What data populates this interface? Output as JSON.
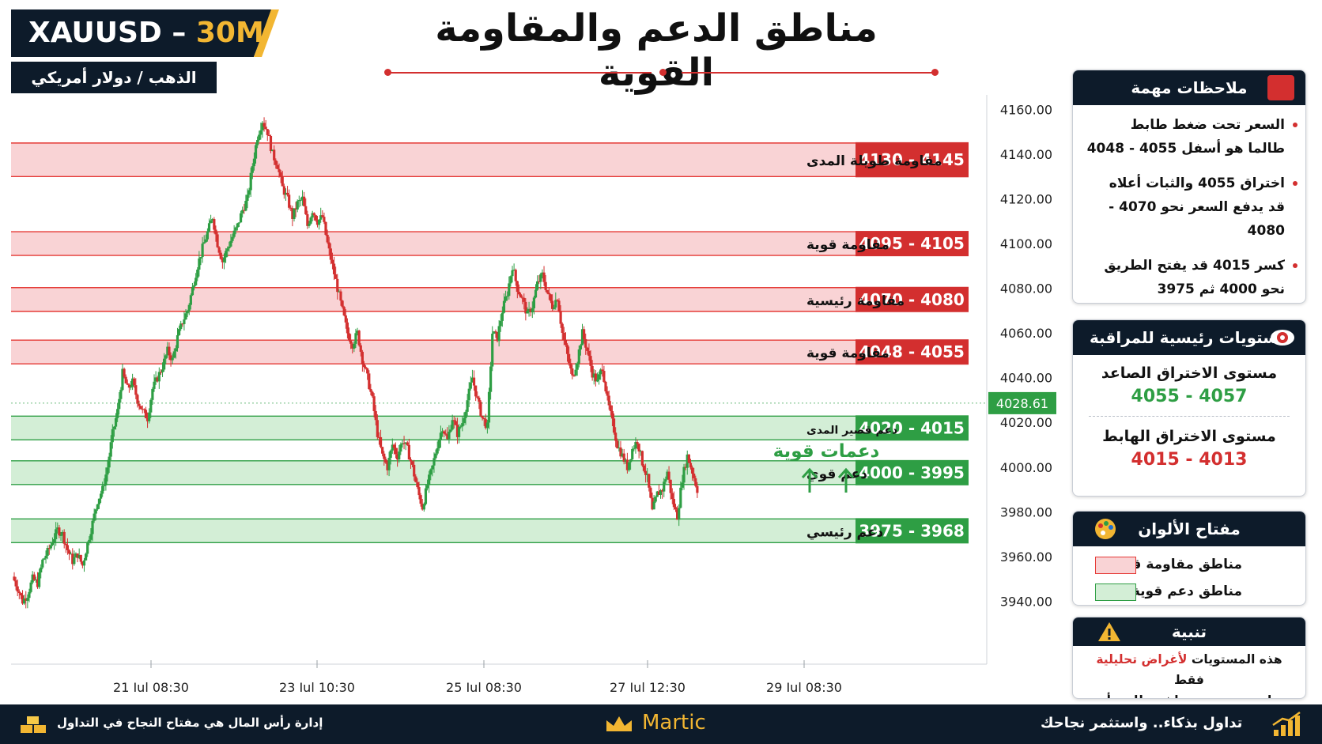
{
  "header": {
    "symbol": "XAUUSD",
    "dash": " – ",
    "timeframe": "30M",
    "subtitle": "الذهب / دولار أمريكي",
    "title": "مناطق الدعم والمقاومة القوية"
  },
  "colors": {
    "navy": "#0d1b2a",
    "gold": "#f2b632",
    "red": "#d32f2f",
    "green": "#2e9e44",
    "resistance_fill": "#f9d3d5",
    "support_fill": "#d3eed6"
  },
  "chart_data": {
    "type": "candlestick",
    "y_ticks": [
      "4160.00",
      "4140.00",
      "4120.00",
      "4100.00",
      "4080.00",
      "4060.00",
      "4040.00",
      "4020.00",
      "4000.00",
      "3980.00",
      "3960.00",
      "3940.00"
    ],
    "ylim": [
      3932,
      4163
    ],
    "x_ticks": [
      "21 Jul 08:30",
      "23 Jul 10:30",
      "25 Jul 08:30",
      "27 Jul 12:30",
      "29 Jul 08:30"
    ],
    "current_price": "4028.61",
    "price_path": [
      3951,
      3946,
      3940,
      3943,
      3950,
      3948,
      3958,
      3962,
      3967,
      3972,
      3970,
      3963,
      3958,
      3961,
      3956,
      3966,
      3975,
      3985,
      3990,
      4000,
      4015,
      4025,
      4042,
      4035,
      4038,
      4030,
      4025,
      4022,
      4035,
      4040,
      4045,
      4052,
      4048,
      4058,
      4065,
      4070,
      4080,
      4090,
      4098,
      4105,
      4112,
      4100,
      4092,
      4098,
      4103,
      4108,
      4115,
      4120,
      4135,
      4148,
      4155,
      4150,
      4140,
      4135,
      4125,
      4120,
      4112,
      4118,
      4120,
      4108,
      4115,
      4110,
      4112,
      4100,
      4090,
      4080,
      4070,
      4060,
      4055,
      4060,
      4048,
      4040,
      4030,
      4015,
      4005,
      4000,
      4010,
      4005,
      4012,
      4008,
      4000,
      3990,
      3982,
      3992,
      4000,
      4010,
      4018,
      4012,
      4022,
      4015,
      4020,
      4030,
      4040,
      4030,
      4022,
      4018,
      4060,
      4058,
      4070,
      4078,
      4090,
      4080,
      4075,
      4068,
      4072,
      4082,
      4086,
      4078,
      4072,
      4076,
      4060,
      4050,
      4040,
      4048,
      4060,
      4052,
      4042,
      4038,
      4045,
      4030,
      4020,
      4010,
      4005,
      4000,
      4008,
      4012,
      4002,
      3995,
      3980,
      3988,
      3990,
      3998,
      3985,
      3978,
      3995,
      4005,
      3998,
      3990
    ]
  },
  "zones": {
    "resistance": [
      {
        "range": "4130 - 4145",
        "label": "مقاومة طويلة المدى",
        "low": 4130,
        "high": 4145
      },
      {
        "range": "4095 - 4105",
        "label": "مقاومة قوية",
        "low": 4095,
        "high": 4105
      },
      {
        "range": "4070 - 4080",
        "label": "مقاومة رئيسية",
        "low": 4070,
        "high": 4080
      },
      {
        "range": "4048 - 4055",
        "label": "مقاومة قوية",
        "low": 4048,
        "high": 4055
      }
    ],
    "support": [
      {
        "range": "4020 - 4015",
        "label": "دعم قصير المدى",
        "low": 4015,
        "high": 4020
      },
      {
        "range": "4000 - 3995",
        "label": "دعم قوي",
        "low": 3995,
        "high": 4000
      },
      {
        "range": "3975 - 3968",
        "label": "دعم رئيسي",
        "low": 3968,
        "high": 3975
      }
    ],
    "strong_supports_label": "دعمات قوية"
  },
  "notes": {
    "title": "ملاحظات مهمة",
    "items": [
      {
        "line1": "السعر تحت ضغط طابط",
        "line2": "طالما هو أسفل 4055 - 4048"
      },
      {
        "line1": "اختراق 4055 والثبات أعلاه",
        "line2": "قد يدفع السعر نحو 4070 - 4080"
      },
      {
        "line1": "كسر 4015 قد يفتح الطريق",
        "line2": "نحو 4000 ثم 3975"
      }
    ]
  },
  "levels": {
    "title": "مستويات رئيسية للمراقبة",
    "up_label": "مستوى الاختراق الصاعد",
    "up_value": "4055 - 4057",
    "down_label": "مستوى الاختراق الهابط",
    "down_value": "4015 - 4013"
  },
  "key": {
    "title": "مفتاح الألوان",
    "resistance": "مناطق مقاومة قوية",
    "support": "مناطق دعم قوية"
  },
  "warning": {
    "title": "تنبية",
    "pre": "هذه المستويات ",
    "highlight": "لأغراض تحليلية",
    "post": " فقط",
    "line2": "وليست توصية مباشرة للبيع أو الشراء"
  },
  "footer": {
    "left": "إدارة رأس المال هي مفتاح النجاح في التداول",
    "brand": "Martic",
    "right": "تداول بذكاء.. واستثمر نجاحك"
  }
}
